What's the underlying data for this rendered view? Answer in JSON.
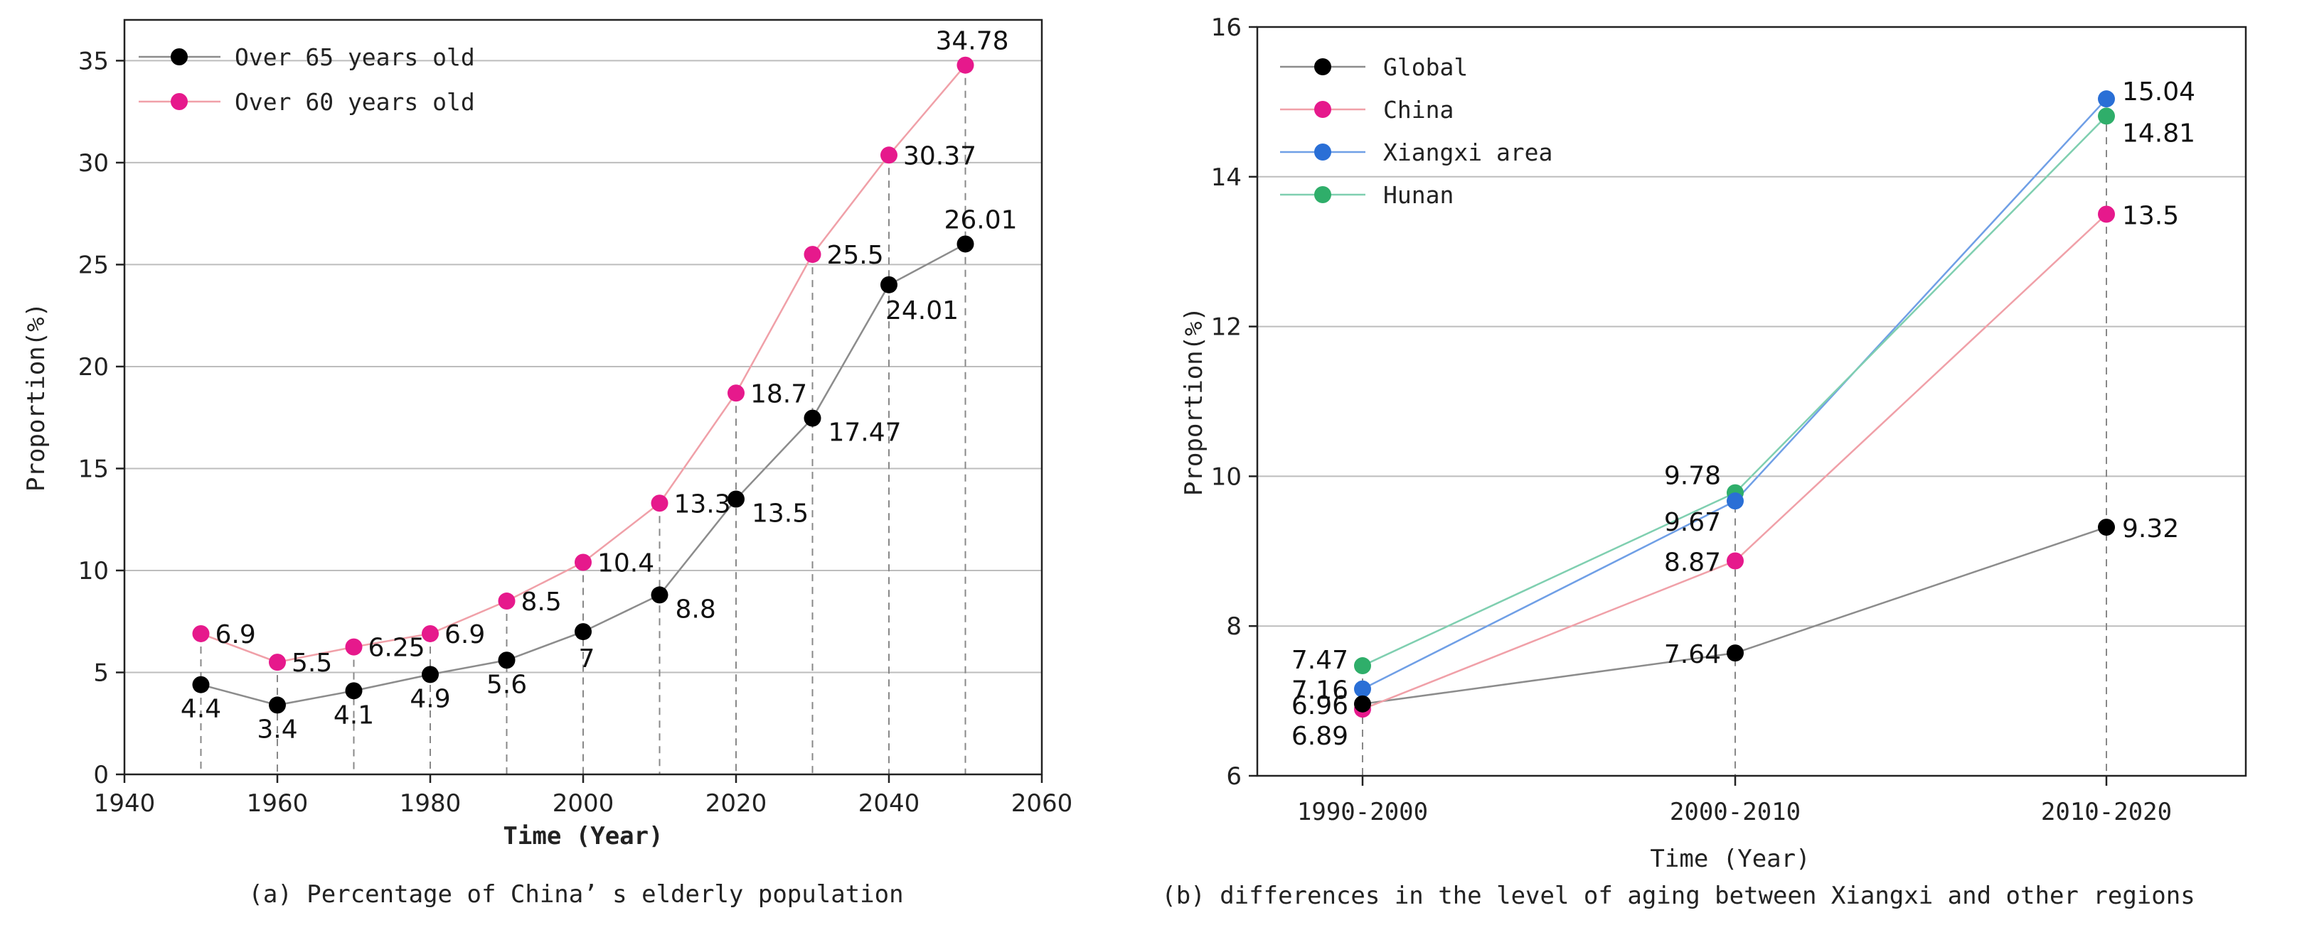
{
  "chart_data": [
    {
      "type": "line",
      "caption": "(a) Percentage of China’ s elderly population",
      "xlabel": "Time (Year)",
      "ylabel": "Proportion(%)",
      "xlim": [
        1940,
        2060
      ],
      "ylim": [
        0,
        37
      ],
      "xticks": [
        1940,
        1960,
        1980,
        2000,
        2020,
        2040,
        2060
      ],
      "yticks": [
        0,
        5,
        10,
        15,
        20,
        25,
        30,
        35
      ],
      "grid": "horizontal",
      "legend_position": "top-left",
      "x": [
        1950,
        1960,
        1970,
        1980,
        1990,
        2000,
        2010,
        2020,
        2030,
        2040,
        2050
      ],
      "series": [
        {
          "name": "Over 65 years old",
          "color": "#000000",
          "line_color": "#8c8c8c",
          "values": [
            4.4,
            3.4,
            4.1,
            4.9,
            5.6,
            7,
            8.8,
            13.5,
            17.47,
            24.01,
            26.01
          ],
          "labels": [
            "4.4",
            "3.4",
            "4.1",
            "4.9",
            "5.6",
            "7",
            "8.8",
            "13.5",
            "17.47",
            "24.01",
            "26.01"
          ]
        },
        {
          "name": "Over 60 years old",
          "color": "#e6198c",
          "line_color": "#f0a0a8",
          "values": [
            6.9,
            5.5,
            6.25,
            6.9,
            8.5,
            10.4,
            13.3,
            18.7,
            25.5,
            30.37,
            34.78
          ],
          "labels": [
            "6.9",
            "5.5",
            "6.25",
            "6.9",
            "8.5",
            "10.4",
            "13.3",
            "18.7",
            "25.5",
            "30.37",
            "34.78"
          ]
        }
      ]
    },
    {
      "type": "line",
      "caption": "(b) differences in the level of aging between Xiangxi and other regions",
      "xlabel": "Time (Year)",
      "ylabel": "Proportion(%)",
      "categories": [
        "1990-2000",
        "2000-2010",
        "2010-2020"
      ],
      "ylim": [
        6,
        16
      ],
      "yticks": [
        6,
        8,
        10,
        12,
        14,
        16
      ],
      "grid": "horizontal",
      "legend_position": "top-left",
      "series": [
        {
          "name": "Global",
          "color": "#000000",
          "line_color": "#8c8c8c",
          "values": [
            6.96,
            7.64,
            9.32
          ],
          "labels": [
            "6.96",
            "7.64",
            "9.32"
          ]
        },
        {
          "name": "China",
          "color": "#e6198c",
          "line_color": "#f0a0a8",
          "values": [
            6.89,
            8.87,
            13.5
          ],
          "labels": [
            "6.89",
            "8.87",
            "13.5"
          ]
        },
        {
          "name": "Xiangxi area",
          "color": "#2a6fd6",
          "line_color": "#6f9fe6",
          "values": [
            7.16,
            9.67,
            15.04
          ],
          "labels": [
            "7.16",
            "9.67",
            "15.04"
          ]
        },
        {
          "name": "Hunan",
          "color": "#2fae6a",
          "line_color": "#7fcfb0",
          "values": [
            7.47,
            9.78,
            14.81
          ],
          "labels": [
            "7.47",
            "9.78",
            "14.81"
          ]
        }
      ]
    }
  ]
}
